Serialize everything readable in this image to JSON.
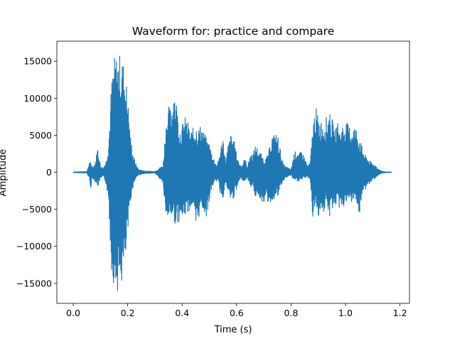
{
  "chart_data": {
    "type": "line",
    "title": "Waveform for: practice and compare",
    "xlabel": "Time (s)",
    "ylabel": "Amplitude",
    "xlim": [
      -0.06,
      1.235
    ],
    "ylim": [
      -17700,
      17700
    ],
    "xticks": [
      0.0,
      0.2,
      0.4,
      0.6,
      0.8,
      1.0,
      1.2
    ],
    "xtick_labels": [
      "0.0",
      "0.2",
      "0.4",
      "0.6",
      "0.8",
      "1.0",
      "1.2"
    ],
    "yticks": [
      -15000,
      -10000,
      -5000,
      0,
      5000,
      10000,
      15000
    ],
    "ytick_labels": [
      "−15000",
      "−10000",
      "−5000",
      "0",
      "5000",
      "10000",
      "15000"
    ],
    "grid": false,
    "legend": "none",
    "series": [
      {
        "color": "#1f77b4",
        "x": [
          0.0,
          0.05,
          0.06,
          0.065,
          0.07,
          0.08,
          0.09,
          0.1,
          0.11,
          0.12,
          0.13,
          0.14,
          0.15,
          0.16,
          0.17,
          0.18,
          0.19,
          0.2,
          0.21,
          0.22,
          0.23,
          0.24,
          0.26,
          0.3,
          0.33,
          0.34,
          0.35,
          0.36,
          0.37,
          0.38,
          0.39,
          0.4,
          0.41,
          0.42,
          0.43,
          0.44,
          0.45,
          0.46,
          0.47,
          0.48,
          0.49,
          0.5,
          0.51,
          0.52,
          0.53,
          0.54,
          0.55,
          0.56,
          0.57,
          0.58,
          0.59,
          0.6,
          0.61,
          0.62,
          0.63,
          0.64,
          0.65,
          0.66,
          0.67,
          0.68,
          0.69,
          0.7,
          0.71,
          0.72,
          0.73,
          0.74,
          0.75,
          0.76,
          0.77,
          0.78,
          0.79,
          0.8,
          0.81,
          0.82,
          0.83,
          0.84,
          0.85,
          0.86,
          0.87,
          0.88,
          0.89,
          0.9,
          0.91,
          0.92,
          0.93,
          0.94,
          0.95,
          0.96,
          0.97,
          0.98,
          0.99,
          1.0,
          1.01,
          1.02,
          1.03,
          1.04,
          1.05,
          1.06,
          1.07,
          1.08,
          1.09,
          1.1,
          1.11,
          1.12,
          1.13,
          1.14,
          1.15,
          1.17
        ],
        "upper": [
          50,
          100,
          1500,
          1200,
          800,
          1200,
          3500,
          1000,
          600,
          1500,
          4000,
          12000,
          15500,
          15800,
          16000,
          15500,
          14000,
          10500,
          5000,
          2500,
          1200,
          400,
          200,
          100,
          1000,
          6500,
          9000,
          8500,
          12000,
          9500,
          6000,
          6500,
          7500,
          7000,
          5500,
          6000,
          6500,
          6000,
          6500,
          5500,
          4500,
          4000,
          2500,
          1500,
          1000,
          3000,
          5000,
          1500,
          4000,
          5200,
          4500,
          2500,
          1200,
          1000,
          2000,
          800,
          2500,
          2500,
          3800,
          3000,
          2500,
          1800,
          2000,
          3200,
          5000,
          5200,
          5300,
          3200,
          1200,
          800,
          600,
          400,
          2500,
          3000,
          2500,
          3000,
          2000,
          1000,
          1200,
          6500,
          9000,
          7500,
          7000,
          7000,
          7500,
          8000,
          7500,
          5500,
          7000,
          5500,
          6500,
          7000,
          6500,
          6000,
          6500,
          6000,
          5000,
          3500,
          2500,
          2000,
          1500,
          1200,
          1000,
          500,
          200,
          100,
          50,
          20
        ],
        "lower": [
          -50,
          -100,
          -1000,
          -2400,
          -800,
          -1200,
          -2000,
          -1000,
          -600,
          -1500,
          -4000,
          -13000,
          -15500,
          -16000,
          -16000,
          -15000,
          -13000,
          -9000,
          -4000,
          -2000,
          -800,
          -400,
          -200,
          -100,
          -1500,
          -7000,
          -6000,
          -6000,
          -6500,
          -7500,
          -6500,
          -6500,
          -6000,
          -5500,
          -5000,
          -4500,
          -8500,
          -6500,
          -4500,
          -5500,
          -6000,
          -4000,
          -2000,
          -1500,
          -1000,
          -3000,
          -3500,
          -1500,
          -3000,
          -4000,
          -3500,
          -2500,
          -1200,
          -1000,
          -1200,
          -800,
          -2000,
          -2000,
          -3500,
          -3000,
          -4000,
          -4000,
          -4000,
          -4200,
          -4000,
          -3500,
          -3500,
          -2500,
          -1200,
          -800,
          -600,
          -400,
          -1200,
          -1200,
          -1200,
          -1000,
          -800,
          -600,
          -1000,
          -6500,
          -4500,
          -6000,
          -5000,
          -5500,
          -4500,
          -6500,
          -5000,
          -4500,
          -4500,
          -5000,
          -5000,
          -4000,
          -4500,
          -4000,
          -4500,
          -3500,
          -6500,
          -3500,
          -2500,
          -2000,
          -1500,
          -1200,
          -800,
          -400,
          -200,
          -100,
          -50,
          -20
        ]
      }
    ]
  }
}
